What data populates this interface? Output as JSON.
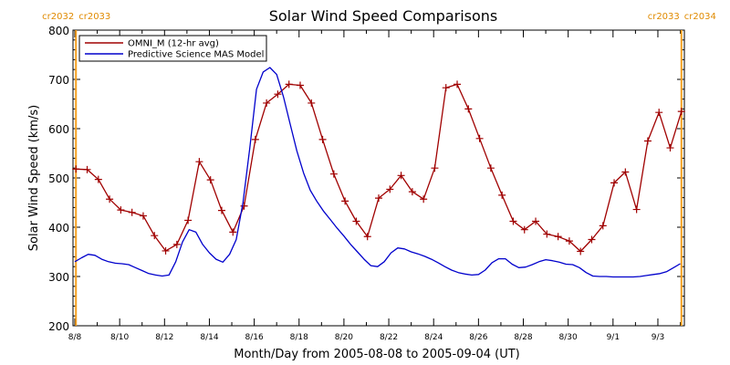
{
  "chart_data": {
    "type": "line",
    "title": "Solar Wind Speed Comparisons",
    "xlabel": "Month/Day from 2005-08-08 to 2005-09-04 (UT)",
    "ylabel": "Solar Wind Speed (km/s)",
    "ylim": [
      200,
      800
    ],
    "yticks": [
      200,
      300,
      400,
      500,
      600,
      700,
      800
    ],
    "xlim_days": [
      0,
      27.1
    ],
    "xticks": [
      {
        "day": 0,
        "label": "8/8"
      },
      {
        "day": 2,
        "label": "8/10"
      },
      {
        "day": 4,
        "label": "8/12"
      },
      {
        "day": 6,
        "label": "8/14"
      },
      {
        "day": 8,
        "label": "8/16"
      },
      {
        "day": 10,
        "label": "8/18"
      },
      {
        "day": 12,
        "label": "8/20"
      },
      {
        "day": 14,
        "label": "8/22"
      },
      {
        "day": 16,
        "label": "8/24"
      },
      {
        "day": 18,
        "label": "8/26"
      },
      {
        "day": 20,
        "label": "8/28"
      },
      {
        "day": 22,
        "label": "8/30"
      },
      {
        "day": 24,
        "label": "9/1"
      },
      {
        "day": 26,
        "label": "9/3"
      }
    ],
    "carrington_rotations": [
      {
        "day": 0.05,
        "left_label": "cr2032",
        "right_label": "cr2033"
      },
      {
        "day": 27.05,
        "left_label": "cr2033",
        "right_label": "cr2034"
      }
    ],
    "rotation_color": "#f5a020",
    "legend_position": "top-left",
    "series": [
      {
        "name": "OMNI_M (12-hr avg)",
        "color": "#a00000",
        "markers": "plus",
        "x": [
          0.05,
          0.55,
          1.05,
          1.55,
          2.05,
          2.55,
          3.05,
          3.55,
          4.05,
          4.55,
          5.05,
          5.55,
          6.05,
          6.55,
          7.05,
          7.55,
          8.05,
          8.55,
          9.05,
          9.55,
          10.05,
          10.55,
          11.05,
          11.55,
          12.05,
          12.55,
          13.05,
          13.55,
          14.05,
          14.55,
          15.05,
          15.55,
          16.05,
          16.55,
          17.05,
          17.55,
          18.05,
          18.55,
          19.05,
          19.55,
          20.05,
          20.55,
          21.05,
          21.55,
          22.05,
          22.55,
          23.05,
          23.55,
          24.05,
          24.55,
          25.05,
          25.55,
          26.05,
          26.55,
          27.05
        ],
        "values": [
          518,
          517,
          497,
          457,
          435,
          430,
          423,
          383,
          352,
          365,
          414,
          533,
          496,
          434,
          390,
          443,
          578,
          652,
          670,
          690,
          688,
          652,
          578,
          508,
          453,
          412,
          381,
          459,
          477,
          505,
          472,
          457,
          520,
          683,
          690,
          640,
          580,
          520,
          465,
          412,
          395,
          412,
          386,
          381,
          372,
          351,
          375,
          403,
          490,
          512,
          436,
          575,
          633,
          561,
          635
        ]
      },
      {
        "name": "Predictive Science MAS Model",
        "color": "#0000cc",
        "markers": "none",
        "x": [
          0,
          0.3,
          0.6,
          0.9,
          1.2,
          1.5,
          1.8,
          2.1,
          2.4,
          2.7,
          3.0,
          3.3,
          3.6,
          3.9,
          4.2,
          4.5,
          4.8,
          5.1,
          5.4,
          5.7,
          6.0,
          6.3,
          6.6,
          6.9,
          7.2,
          7.5,
          7.8,
          8.1,
          8.4,
          8.7,
          9.0,
          9.3,
          9.6,
          9.9,
          10.2,
          10.5,
          10.8,
          11.1,
          11.4,
          11.7,
          12.0,
          12.3,
          12.6,
          12.9,
          13.2,
          13.5,
          13.8,
          14.1,
          14.4,
          14.7,
          15.0,
          15.3,
          15.6,
          15.9,
          16.2,
          16.5,
          16.8,
          17.1,
          17.4,
          17.7,
          18.0,
          18.3,
          18.6,
          18.9,
          19.2,
          19.5,
          19.8,
          20.1,
          20.4,
          20.7,
          21.0,
          21.3,
          21.6,
          21.9,
          22.2,
          22.5,
          22.8,
          23.1,
          23.4,
          23.7,
          24.0,
          24.3,
          24.6,
          24.9,
          25.2,
          25.5,
          25.8,
          26.1,
          26.4,
          26.7,
          27.0
        ],
        "values": [
          330,
          338,
          345,
          343,
          335,
          330,
          327,
          326,
          324,
          318,
          312,
          306,
          303,
          301,
          303,
          330,
          370,
          395,
          390,
          365,
          348,
          335,
          329,
          345,
          375,
          450,
          560,
          680,
          715,
          724,
          710,
          665,
          610,
          555,
          510,
          475,
          452,
          432,
          415,
          398,
          382,
          365,
          350,
          335,
          322,
          320,
          330,
          348,
          358,
          356,
          350,
          346,
          341,
          335,
          328,
          320,
          313,
          308,
          305,
          303,
          304,
          313,
          328,
          336,
          336,
          325,
          318,
          319,
          324,
          330,
          334,
          332,
          329,
          325,
          324,
          318,
          308,
          301,
          300,
          300,
          299,
          299,
          299,
          299,
          300,
          302,
          304,
          306,
          310,
          318,
          326
        ]
      }
    ]
  }
}
